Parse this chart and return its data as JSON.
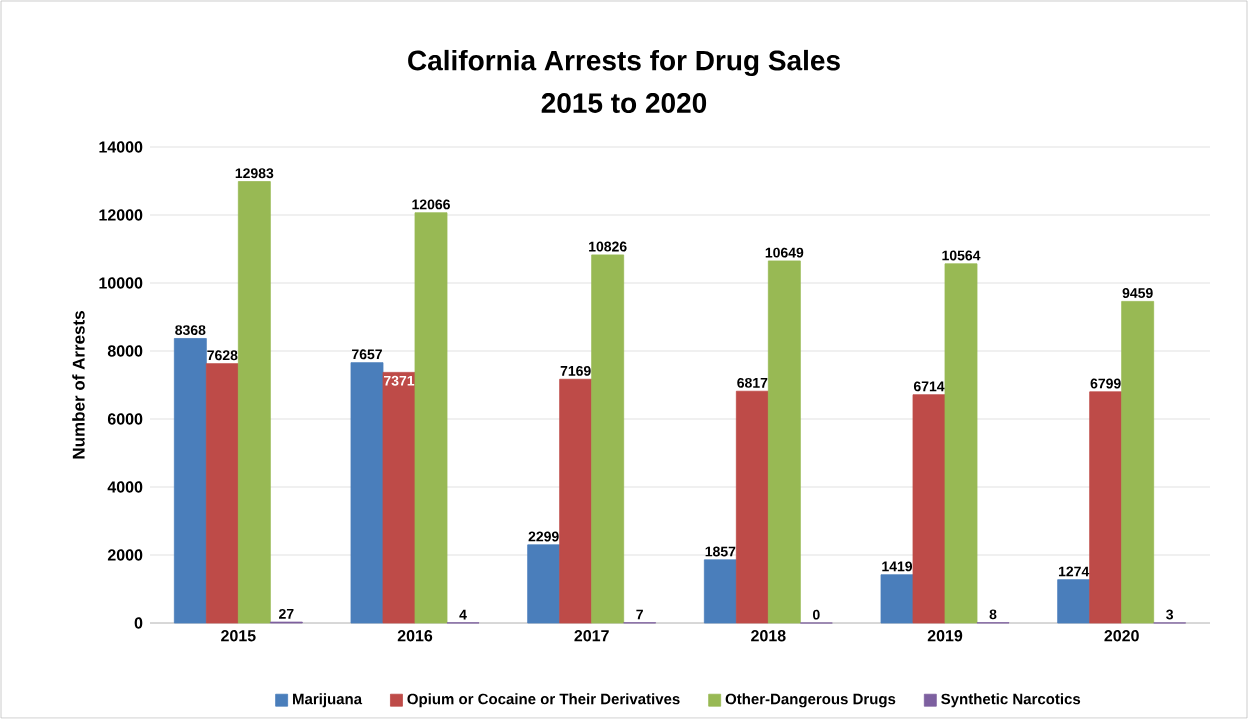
{
  "chart_data": {
    "type": "bar",
    "title": "California Arrests for Drug Sales",
    "subtitle": "2015 to 2020",
    "ylabel": "Number of Arrests",
    "categories": [
      "2015",
      "2016",
      "2017",
      "2018",
      "2019",
      "2020"
    ],
    "series": [
      {
        "name": "Marijuana",
        "color": "#4a7ebb",
        "values": [
          8368,
          7657,
          2299,
          1857,
          1419,
          1274
        ]
      },
      {
        "name": "Opium or Cocaine or Their Derivatives",
        "color": "#be4b48",
        "values": [
          7628,
          7371,
          7169,
          6817,
          6714,
          6799
        ]
      },
      {
        "name": "Other-Dangerous Drugs",
        "color": "#98b954",
        "values": [
          12983,
          12066,
          10826,
          10649,
          10564,
          9459
        ]
      },
      {
        "name": "Synthetic Narcotics",
        "color": "#7d60a0",
        "values": [
          27,
          4,
          7,
          0,
          8,
          3
        ]
      }
    ],
    "ylim": [
      0,
      14000
    ],
    "yticks": [
      0,
      2000,
      4000,
      6000,
      8000,
      10000,
      12000,
      14000
    ],
    "grid": "y",
    "legend": "bottom",
    "data_labels": true
  }
}
